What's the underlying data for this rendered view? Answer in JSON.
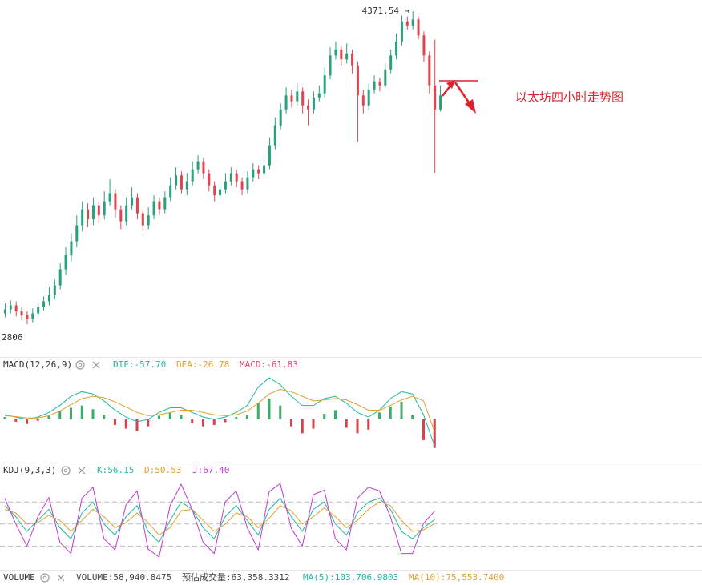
{
  "chart_data": [
    {
      "type": "candlestick",
      "up_color": "#26a17b",
      "down_color": "#e0454f",
      "high_label": "4371.54 →",
      "low_label": "2806",
      "open": [
        2860,
        2880,
        2900,
        2870,
        2850,
        2830,
        2860,
        2890,
        2920,
        2950,
        3000,
        3080,
        3150,
        3220,
        3300,
        3380,
        3330,
        3400,
        3350,
        3420,
        3460,
        3380,
        3320,
        3400,
        3440,
        3360,
        3300,
        3350,
        3420,
        3380,
        3440,
        3500,
        3550,
        3480,
        3520,
        3580,
        3620,
        3560,
        3500,
        3450,
        3480,
        3520,
        3560,
        3520,
        3480,
        3540,
        3580,
        3560,
        3600,
        3700,
        3800,
        3880,
        3950,
        3920,
        3970,
        3900,
        3880,
        3940,
        3960,
        4050,
        4150,
        4180,
        4130,
        4160,
        4100,
        3950,
        3900,
        3980,
        4020,
        4000,
        4080,
        4150,
        4220,
        4320,
        4300,
        4330,
        4250,
        4150,
        4000,
        3880
      ],
      "high": [
        2910,
        2925,
        2920,
        2890,
        2870,
        2885,
        2910,
        2945,
        2990,
        3030,
        3110,
        3190,
        3260,
        3350,
        3420,
        3410,
        3440,
        3420,
        3470,
        3530,
        3480,
        3400,
        3440,
        3490,
        3460,
        3380,
        3390,
        3450,
        3440,
        3470,
        3540,
        3590,
        3570,
        3560,
        3620,
        3650,
        3640,
        3580,
        3520,
        3510,
        3560,
        3590,
        3580,
        3540,
        3570,
        3610,
        3600,
        3640,
        3740,
        3840,
        3910,
        3990,
        3980,
        4010,
        3990,
        3930,
        3970,
        4000,
        4090,
        4190,
        4220,
        4200,
        4210,
        4180,
        4120,
        3980,
        4010,
        4050,
        4040,
        4110,
        4180,
        4260,
        4350,
        4345,
        4371.54,
        4345,
        4270,
        4170,
        4230,
        4000
      ],
      "low": [
        2840,
        2860,
        2845,
        2825,
        2806,
        2815,
        2845,
        2875,
        2900,
        2930,
        2980,
        3050,
        3120,
        3190,
        3270,
        3290,
        3300,
        3310,
        3330,
        3400,
        3340,
        3280,
        3300,
        3380,
        3330,
        3270,
        3280,
        3330,
        3350,
        3360,
        3420,
        3480,
        3460,
        3450,
        3500,
        3560,
        3530,
        3470,
        3420,
        3430,
        3460,
        3500,
        3490,
        3450,
        3460,
        3520,
        3530,
        3540,
        3580,
        3680,
        3780,
        3860,
        3890,
        3900,
        3860,
        3800,
        3860,
        3920,
        3940,
        4030,
        4130,
        4100,
        4110,
        4060,
        3719,
        3860,
        3880,
        3960,
        3970,
        3990,
        4060,
        4130,
        4200,
        4280,
        4280,
        4230,
        4120,
        3960,
        3563,
        3870
      ],
      "close": [
        2880,
        2900,
        2870,
        2850,
        2830,
        2860,
        2890,
        2920,
        2950,
        3000,
        3080,
        3150,
        3220,
        3300,
        3380,
        3330,
        3400,
        3350,
        3420,
        3460,
        3380,
        3320,
        3400,
        3440,
        3360,
        3300,
        3350,
        3420,
        3380,
        3440,
        3500,
        3550,
        3480,
        3520,
        3580,
        3620,
        3560,
        3500,
        3450,
        3480,
        3520,
        3560,
        3520,
        3480,
        3540,
        3580,
        3560,
        3600,
        3700,
        3800,
        3880,
        3950,
        3920,
        3970,
        3900,
        3880,
        3940,
        3960,
        4050,
        4150,
        4180,
        4130,
        4160,
        4100,
        3950,
        3900,
        3980,
        4020,
        4000,
        4080,
        4150,
        4220,
        4320,
        4300,
        4330,
        4250,
        4150,
        4000,
        3880,
        3950
      ]
    },
    {
      "type": "macd",
      "title": "MACD(12,26,9)",
      "readouts": [
        {
          "text": "DIF:-57.70",
          "color": "#1fb8a0"
        },
        {
          "text": "DEA:-26.78",
          "color": "#e0a030"
        },
        {
          "text": "MACD:-61.83",
          "color": "#e0456a"
        }
      ],
      "up_color": "#3cae6a",
      "down_color": "#d8404c",
      "dif_color": "#1fb8a0",
      "dea_color": "#e0a030",
      "hist": [
        5,
        -5,
        -10,
        -3,
        8,
        18,
        25,
        30,
        22,
        10,
        -12,
        -20,
        -25,
        -15,
        8,
        15,
        10,
        -8,
        -15,
        -12,
        -6,
        5,
        10,
        35,
        45,
        30,
        -15,
        -30,
        -20,
        12,
        20,
        -18,
        -30,
        -22,
        15,
        28,
        38,
        10,
        -45,
        -61.83
      ],
      "dif": [
        10,
        5,
        0,
        5,
        15,
        30,
        50,
        60,
        55,
        40,
        20,
        5,
        -5,
        0,
        15,
        25,
        25,
        15,
        5,
        0,
        5,
        15,
        30,
        70,
        90,
        75,
        50,
        30,
        30,
        45,
        50,
        35,
        15,
        5,
        20,
        45,
        60,
        55,
        10,
        -57.7
      ],
      "dea": [
        8,
        6,
        3,
        3,
        8,
        18,
        32,
        45,
        50,
        47,
        38,
        27,
        15,
        8,
        10,
        15,
        20,
        20,
        15,
        10,
        8,
        10,
        18,
        35,
        55,
        65,
        60,
        50,
        40,
        42,
        45,
        42,
        32,
        20,
        20,
        30,
        42,
        50,
        40,
        -26.78
      ]
    },
    {
      "type": "kdj",
      "title": "KDJ(9,3,3)",
      "readouts": [
        {
          "text": "K:56.15",
          "color": "#1fb8a0"
        },
        {
          "text": "D:50.53",
          "color": "#e0a030"
        },
        {
          "text": "J:67.40",
          "color": "#c13ad0"
        }
      ],
      "k_color": "#1fb8a0",
      "d_color": "#e0a030",
      "j_color": "#c13ad0",
      "ylim": [
        -10,
        115
      ],
      "levels": [
        80,
        50,
        20
      ],
      "k": [
        75,
        60,
        40,
        55,
        70,
        45,
        30,
        65,
        80,
        50,
        35,
        60,
        75,
        40,
        25,
        55,
        80,
        70,
        45,
        30,
        60,
        75,
        55,
        35,
        70,
        85,
        60,
        40,
        70,
        80,
        50,
        35,
        65,
        80,
        85,
        70,
        40,
        30,
        45,
        56.15
      ],
      "d": [
        70,
        65,
        50,
        52,
        62,
        55,
        40,
        55,
        70,
        60,
        45,
        52,
        65,
        52,
        35,
        45,
        68,
        70,
        55,
        40,
        50,
        65,
        60,
        45,
        58,
        75,
        68,
        50,
        60,
        72,
        60,
        45,
        55,
        70,
        80,
        75,
        55,
        40,
        42,
        50.53
      ],
      "j": [
        85,
        50,
        20,
        60,
        86,
        25,
        10,
        85,
        100,
        30,
        15,
        76,
        95,
        16,
        5,
        75,
        104,
        70,
        25,
        10,
        80,
        95,
        45,
        15,
        94,
        105,
        44,
        20,
        90,
        96,
        30,
        15,
        85,
        100,
        95,
        60,
        10,
        10,
        51,
        67.4
      ]
    },
    {
      "type": "volume",
      "title": "VOLUME",
      "readouts": [
        {
          "text": "VOLUME:58,940.8475",
          "color": "#444444"
        },
        {
          "text": "预估成交量:63,358.3312",
          "color": "#444444"
        },
        {
          "text": "MA(5):103,706.9803",
          "color": "#1fb8a0"
        },
        {
          "text": "MA(10):75,553.7400",
          "color": "#e0a030"
        }
      ]
    }
  ],
  "annotation": "以太坊四小时走势图"
}
